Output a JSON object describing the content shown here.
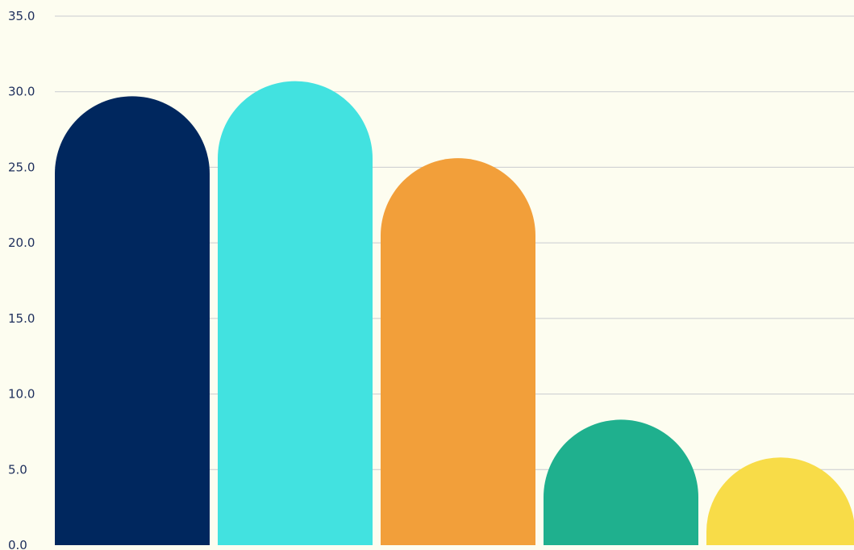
{
  "chart_data": {
    "type": "bar",
    "title": "",
    "xlabel": "",
    "ylabel": "",
    "ylim": [
      0,
      35
    ],
    "yticks": [
      0,
      5,
      10,
      15,
      20,
      25,
      30,
      35
    ],
    "ytick_labels": [
      "0.0",
      "5.0",
      "10.0",
      "15.0",
      "20.0",
      "25.0",
      "30.0",
      "35.0"
    ],
    "grid": true,
    "legend": "none",
    "values": [
      29.7,
      30.7,
      25.6,
      8.3,
      5.8
    ],
    "colors": [
      "#00275e",
      "#42e2e0",
      "#f29f3a",
      "#1fb08e",
      "#f8dc48"
    ]
  }
}
